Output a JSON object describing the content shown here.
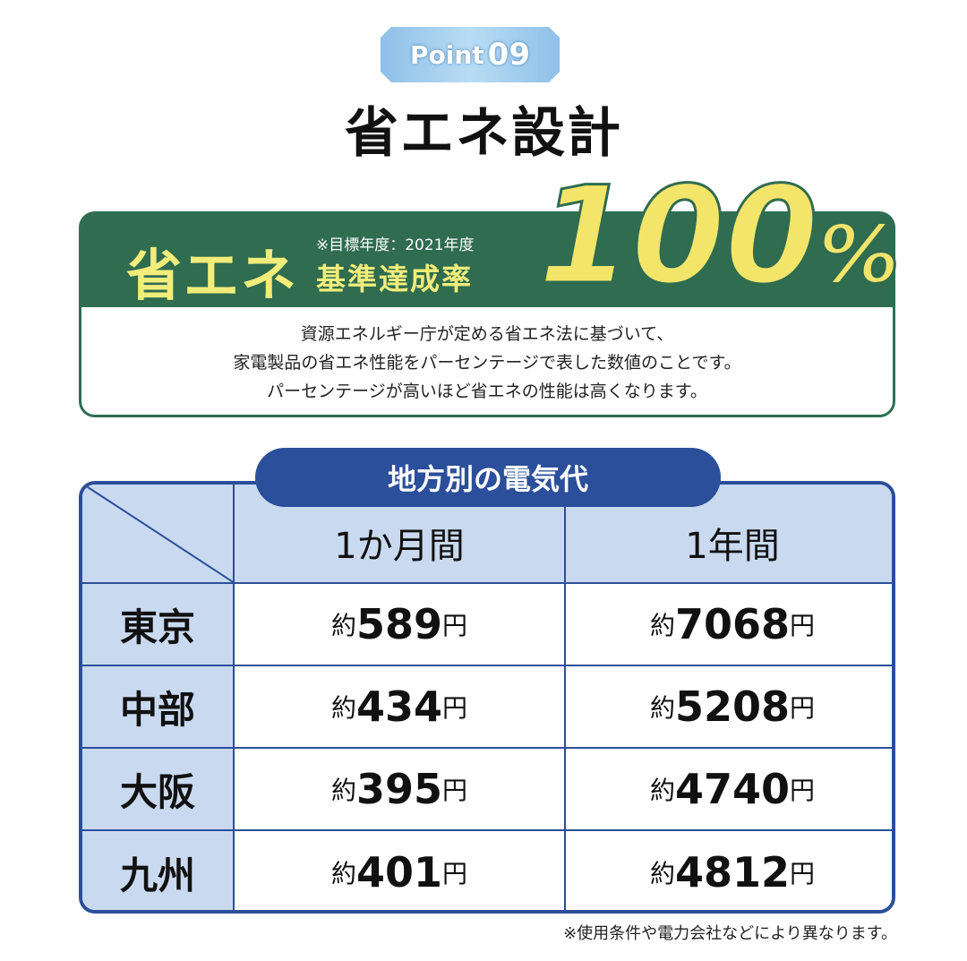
{
  "badge": {
    "prefix": "Point",
    "number": "09"
  },
  "title": "省エネ設計",
  "banner": {
    "label": "省エネ",
    "note": "※目標年度：2021年度",
    "sublabel": "基準達成率",
    "value": "100",
    "unit": "%",
    "description": [
      "資源エネルギー庁が定める省エネ法に基づいて、",
      "家電製品の省エネ性能をパーセンテージで表した数値のことです。",
      "パーセンテージが高いほど省エネの性能は高くなります。"
    ]
  },
  "table": {
    "title": "地方別の電気代",
    "columns": [
      "1か月間",
      "1年間"
    ],
    "prefix": "約",
    "unit": "円",
    "rows": [
      {
        "region": "東京",
        "month": "589",
        "year": "7068"
      },
      {
        "region": "中部",
        "month": "434",
        "year": "5208"
      },
      {
        "region": "大阪",
        "month": "395",
        "year": "4740"
      },
      {
        "region": "九州",
        "month": "401",
        "year": "4812"
      }
    ]
  },
  "footnote": "※使用条件や電力会社などにより異なります。",
  "colors": {
    "green": "#2f6c50",
    "yellow": "#f2ec7a",
    "blue": "#2b4f9a",
    "light_blue": "#c9daf0"
  }
}
